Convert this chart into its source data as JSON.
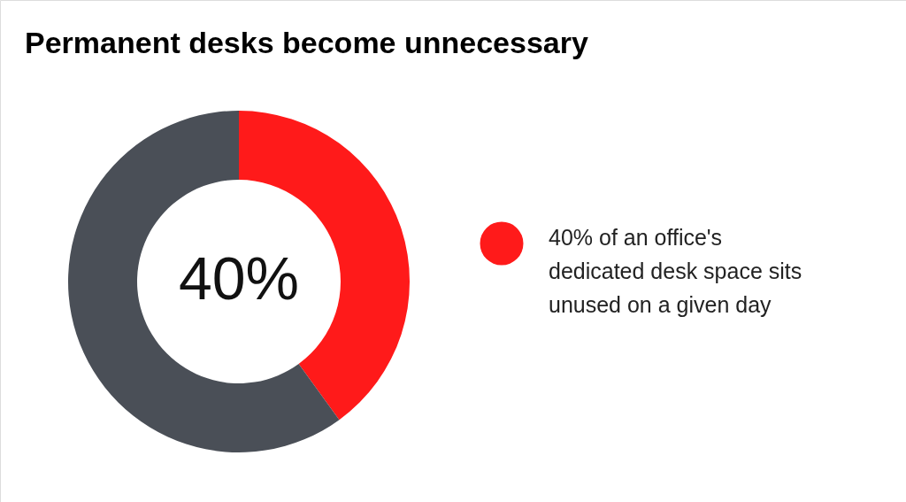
{
  "chart_data": {
    "type": "donut",
    "title": "Permanent desks become unnecessary",
    "categories": [
      "40% of an office's dedicated desk space sits unused on a given day",
      null
    ],
    "values": [
      40,
      60
    ],
    "colors": [
      "#ff1a1a",
      "#4a4f57"
    ],
    "annotations": [
      "40%"
    ],
    "legend": "right"
  }
}
